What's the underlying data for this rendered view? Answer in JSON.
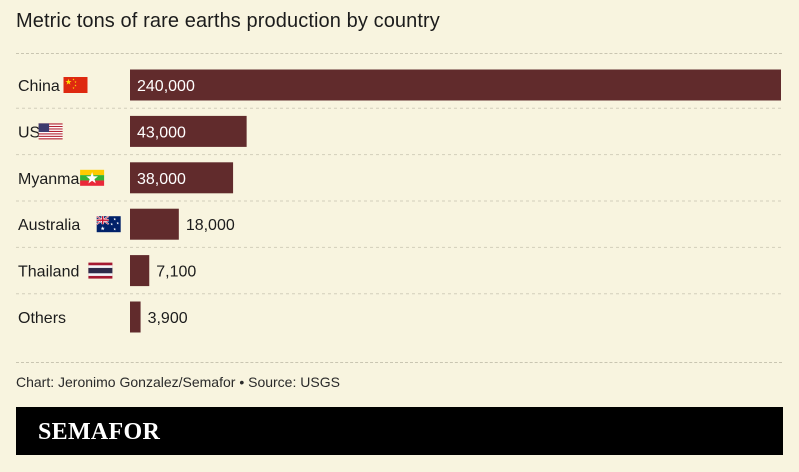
{
  "title": "Metric tons of rare earths production by country",
  "source_note": "Chart: Jeronimo Gonzalez/Semafor • Source: USGS",
  "brand": "SEMAFOR",
  "colors": {
    "bar": "#612b2c",
    "background": "#f8f4df",
    "label_inside": "#ffffff",
    "label_outside": "#1c1c1c"
  },
  "chart_data": {
    "type": "bar",
    "orientation": "horizontal",
    "title": "Metric tons of rare earths production by country",
    "xlabel": "",
    "ylabel": "",
    "grid": false,
    "xlim": [
      0,
      240000
    ],
    "categories": [
      "China",
      "US",
      "Myanmar",
      "Australia",
      "Thailand",
      "Others"
    ],
    "values": [
      240000,
      43000,
      38000,
      18000,
      7100,
      3900
    ],
    "value_labels": [
      "240,000",
      "43,000",
      "38,000",
      "18,000",
      "7,100",
      "3,900"
    ],
    "flags": [
      "china-flag",
      "us-flag",
      "myanmar-flag",
      "australia-flag",
      "thailand-flag",
      ""
    ]
  }
}
